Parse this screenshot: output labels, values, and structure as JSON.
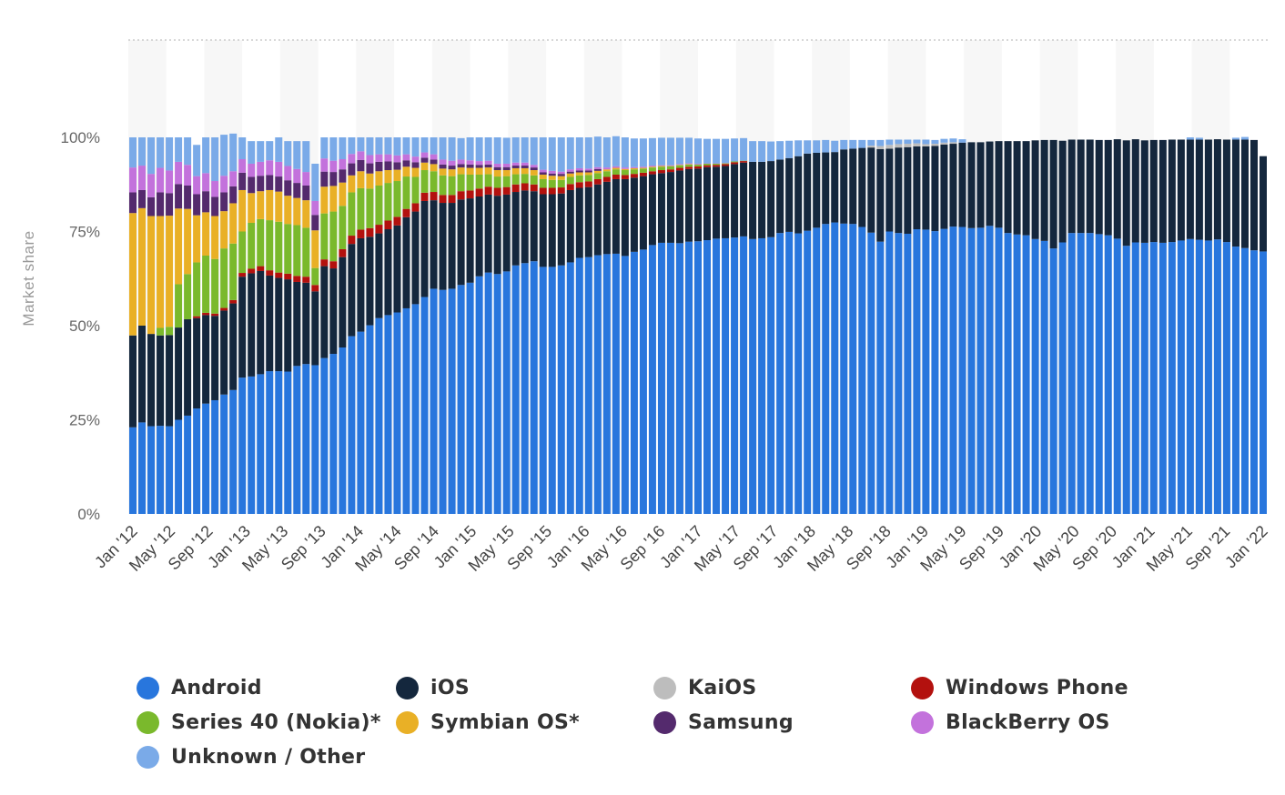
{
  "chart_data": {
    "type": "bar",
    "stacked": true,
    "x_tick_labels": [
      "Jan '12",
      "May '12",
      "Sep '12",
      "Jan '13",
      "May '13",
      "Sep '13",
      "Jan '14",
      "May '14",
      "Sep '14",
      "Jan '15",
      "May '15",
      "Sep '15",
      "Jan '16",
      "May '16",
      "Sep '16",
      "Jan '17",
      "May '17",
      "Sep '17",
      "Jan '18",
      "May '18",
      "Sep '18",
      "Jan '19",
      "May '19",
      "Sep '19",
      "Jan '20",
      "May '20",
      "Sep '20",
      "Jan '21",
      "May '21",
      "Sep '21",
      "Jan '22"
    ],
    "x_start": "Jan '12",
    "x_end": "Jan '22",
    "ylabel": "Market share",
    "y_ticks": [
      "0%",
      "25%",
      "50%",
      "75%",
      "100%"
    ],
    "ylim": [
      0,
      100
    ],
    "grid": "horizontal dotted",
    "legend_position": "bottom",
    "series": [
      {
        "name": "Android",
        "color": "#2876dd",
        "values": [
          23.0,
          24.3,
          23.3,
          23.4,
          23.3,
          25.0,
          26.1,
          28.0,
          29.3,
          30.2,
          31.7,
          32.9,
          36.2,
          36.5,
          37.1,
          37.9,
          37.9,
          37.8,
          39.3,
          39.8,
          39.5,
          41.4,
          42.5,
          44.2,
          47.2,
          48.4,
          50.1,
          52.0,
          52.8,
          53.5,
          54.6,
          55.7,
          57.6,
          59.8,
          59.5,
          59.8,
          60.8,
          61.4,
          63.1,
          64.1,
          63.7,
          64.4,
          66.0,
          66.6,
          67.1,
          65.6,
          65.6,
          66.0,
          66.8,
          68.0,
          68.2,
          68.7,
          69.0,
          69.1,
          68.5,
          69.6,
          70.2,
          71.4,
          72.0,
          72.0,
          71.9,
          72.3,
          72.4,
          72.7,
          73.1,
          73.2,
          73.4,
          73.7,
          73.0,
          73.2,
          73.5,
          74.6,
          74.9,
          74.5,
          75.2,
          76.0,
          77.0,
          77.4,
          77.1,
          77.0,
          76.2,
          74.7,
          72.3,
          75.0,
          74.6,
          74.4,
          75.6,
          75.5,
          75.1,
          75.7,
          76.3,
          76.2,
          75.9,
          76.0,
          76.5,
          76.0,
          74.6,
          74.2,
          74.0,
          73.0,
          72.5,
          70.5,
          72.1,
          74.6,
          74.6,
          74.6,
          74.3,
          74.0,
          73.1,
          71.2,
          72.1,
          72.0,
          72.2,
          72.0,
          72.2,
          72.6,
          73.0,
          72.8,
          72.6,
          72.9,
          72.2,
          71.0,
          70.6,
          70.0,
          69.7
        ]
      },
      {
        "name": "iOS",
        "color": "#14273d",
        "values": [
          24.4,
          25.7,
          24.5,
          24.0,
          24.2,
          24.5,
          25.6,
          24.0,
          23.5,
          22.4,
          22.3,
          23.0,
          26.8,
          27.4,
          27.4,
          25.4,
          24.8,
          24.5,
          22.3,
          21.6,
          19.6,
          24.4,
          22.7,
          24.0,
          24.5,
          24.8,
          23.5,
          22.5,
          22.8,
          23.1,
          24.2,
          24.6,
          25.5,
          23.5,
          23.1,
          22.8,
          22.7,
          22.4,
          21.2,
          20.7,
          20.8,
          20.4,
          19.5,
          19.3,
          18.6,
          19.3,
          19.3,
          19.1,
          19.2,
          18.6,
          18.6,
          18.8,
          19.2,
          19.8,
          20.4,
          19.7,
          19.5,
          18.8,
          18.5,
          18.8,
          19.3,
          19.3,
          19.3,
          19.4,
          19.1,
          19.2,
          19.5,
          19.6,
          20.5,
          20.3,
          20.2,
          19.5,
          19.6,
          20.5,
          20.5,
          19.9,
          19.0,
          18.7,
          19.7,
          20.0,
          21.0,
          22.6,
          24.6,
          22.0,
          22.7,
          23.0,
          22.0,
          22.1,
          22.6,
          22.4,
          22.0,
          22.4,
          22.8,
          22.7,
          22.4,
          23.0,
          24.4,
          24.8,
          25.0,
          26.2,
          26.8,
          28.8,
          27.0,
          24.8,
          24.8,
          24.8,
          25.0,
          25.3,
          26.4,
          28.0,
          27.4,
          27.2,
          27.1,
          27.3,
          27.2,
          26.8,
          26.4,
          26.6,
          26.8,
          26.6,
          27.2,
          28.4,
          28.8,
          29.3,
          25.3
        ]
      },
      {
        "name": "KaiOS",
        "color": "#bdbdbd",
        "values": [
          0,
          0,
          0,
          0,
          0,
          0,
          0,
          0,
          0,
          0,
          0,
          0,
          0,
          0,
          0,
          0,
          0,
          0,
          0,
          0,
          0,
          0,
          0,
          0,
          0,
          0,
          0,
          0,
          0,
          0,
          0,
          0,
          0,
          0,
          0,
          0,
          0,
          0,
          0,
          0,
          0,
          0,
          0,
          0,
          0,
          0,
          0,
          0,
          0,
          0,
          0,
          0,
          0,
          0,
          0,
          0,
          0,
          0,
          0,
          0,
          0,
          0,
          0,
          0,
          0,
          0,
          0,
          0,
          0,
          0,
          0,
          0,
          0,
          0,
          0,
          0,
          0,
          0,
          0,
          0,
          0,
          0.5,
          0.8,
          1.0,
          0.9,
          0.9,
          0.8,
          0.6,
          0.6,
          0.5,
          0.4,
          0,
          0,
          0,
          0,
          0,
          0,
          0,
          0,
          0,
          0,
          0,
          0,
          0,
          0,
          0,
          0,
          0,
          0,
          0,
          0,
          0,
          0,
          0,
          0,
          0,
          0,
          0,
          0,
          0,
          0,
          0,
          0,
          0,
          0,
          0,
          0.6
        ]
      },
      {
        "name": "Windows Phone",
        "color": "#b3110e",
        "values": [
          0,
          0,
          0,
          0,
          0,
          0,
          0,
          0.5,
          0.6,
          0.6,
          0.7,
          0.9,
          1.0,
          1.2,
          1.3,
          1.4,
          1.4,
          1.5,
          1.6,
          1.6,
          1.7,
          1.8,
          1.9,
          2.1,
          2.2,
          2.3,
          2.3,
          2.3,
          2.3,
          2.3,
          2.2,
          2.2,
          2.2,
          2.2,
          2.1,
          2.1,
          2.2,
          2.1,
          2.1,
          2.1,
          2.1,
          2.0,
          2.0,
          1.9,
          1.8,
          1.7,
          1.7,
          1.6,
          1.6,
          1.5,
          1.5,
          1.4,
          1.3,
          1.2,
          1.1,
          1.0,
          0.9,
          0.8,
          0.8,
          0.7,
          0.7,
          0.6,
          0.6,
          0.5,
          0.5,
          0.5,
          0.5,
          0.4,
          0,
          0,
          0,
          0,
          0,
          0,
          0,
          0,
          0,
          0,
          0,
          0,
          0,
          0,
          0,
          0,
          0,
          0,
          0,
          0,
          0,
          0,
          0,
          0,
          0,
          0,
          0,
          0,
          0,
          0,
          0,
          0,
          0,
          0,
          0,
          0,
          0,
          0,
          0,
          0,
          0,
          0,
          0,
          0,
          0,
          0,
          0,
          0,
          0,
          0,
          0,
          0,
          0,
          0,
          0,
          0,
          0,
          0,
          0
        ]
      },
      {
        "name": "Series 40 (Nokia)*",
        "color": "#7ab92c",
        "values": [
          0,
          0,
          0,
          2.0,
          2.2,
          11.5,
          12.0,
          14.3,
          15.2,
          14.5,
          15.8,
          15.0,
          11.0,
          12.2,
          12.5,
          13.3,
          13.5,
          13.2,
          13.5,
          13.0,
          4.5,
          12.2,
          13.2,
          11.5,
          11.5,
          11.0,
          10.5,
          10.4,
          10.0,
          9.5,
          8.6,
          7.0,
          6.0,
          5.5,
          5.2,
          5.0,
          4.5,
          4.2,
          3.7,
          3.3,
          3.0,
          2.9,
          2.7,
          2.5,
          2.4,
          2.3,
          2.1,
          2.0,
          1.9,
          1.8,
          1.7,
          1.6,
          1.5,
          1.4,
          1.3,
          1.2,
          1.1,
          1.0,
          0.9,
          0.8,
          0.7,
          0.6,
          0.5,
          0.4,
          0.3,
          0.2,
          0.2,
          0.1,
          0,
          0,
          0,
          0,
          0,
          0,
          0,
          0,
          0,
          0,
          0,
          0,
          0,
          0,
          0,
          0,
          0,
          0,
          0,
          0,
          0,
          0,
          0,
          0,
          0,
          0,
          0,
          0,
          0,
          0,
          0,
          0,
          0,
          0,
          0,
          0,
          0,
          0,
          0,
          0,
          0,
          0,
          0,
          0,
          0,
          0,
          0,
          0,
          0,
          0,
          0,
          0,
          0,
          0,
          0,
          0,
          0
        ]
      },
      {
        "name": "Symbian OS*",
        "color": "#e9b026",
        "values": [
          32.5,
          31.2,
          31.3,
          29.7,
          29.5,
          20.1,
          17.3,
          12.5,
          11.5,
          11.4,
          9.9,
          10.7,
          11.0,
          7.9,
          7.4,
          8.0,
          8.0,
          7.5,
          7.2,
          7.3,
          10.0,
          7.1,
          6.8,
          6.2,
          4.5,
          4.5,
          4.0,
          3.8,
          3.4,
          3.0,
          2.6,
          2.4,
          2.0,
          1.9,
          1.8,
          1.8,
          1.8,
          1.8,
          1.8,
          1.8,
          1.7,
          1.6,
          1.6,
          1.5,
          1.4,
          1.2,
          1.1,
          1.0,
          0.9,
          0.8,
          0.7,
          0.6,
          0.5,
          0.4,
          0.3,
          0.3,
          0.2,
          0.2,
          0.2,
          0.1,
          0.1,
          0.1,
          0,
          0,
          0,
          0,
          0,
          0,
          0,
          0,
          0,
          0,
          0,
          0,
          0,
          0,
          0,
          0,
          0,
          0,
          0,
          0,
          0,
          0,
          0,
          0,
          0,
          0,
          0,
          0,
          0,
          0,
          0,
          0,
          0,
          0,
          0,
          0,
          0,
          0,
          0,
          0,
          0,
          0,
          0,
          0,
          0,
          0,
          0,
          0,
          0,
          0,
          0,
          0,
          0,
          0,
          0,
          0,
          0,
          0,
          0,
          0,
          0,
          0,
          0
        ]
      },
      {
        "name": "Samsung",
        "color": "#542a6d",
        "values": [
          5.5,
          4.8,
          5.0,
          6.3,
          6.0,
          6.5,
          6.2,
          5.6,
          5.6,
          5.1,
          5.0,
          4.5,
          4.6,
          4.3,
          4.1,
          4.0,
          4.0,
          4.1,
          4.0,
          3.9,
          4.1,
          4.0,
          3.7,
          3.5,
          3.2,
          3.0,
          2.7,
          2.5,
          2.3,
          2.0,
          1.7,
          1.5,
          1.3,
          1.2,
          1.1,
          1.0,
          0.9,
          0.9,
          0.8,
          0.8,
          0.8,
          0.8,
          0.7,
          0.7,
          0.7,
          0.6,
          0.6,
          0.6,
          0.5,
          0.5,
          0.5,
          0.5,
          0,
          0,
          0,
          0,
          0,
          0,
          0,
          0,
          0,
          0,
          0,
          0,
          0,
          0,
          0,
          0,
          0,
          0,
          0,
          0,
          0,
          0,
          0,
          0,
          0,
          0,
          0,
          0,
          0,
          0,
          0,
          0,
          0,
          0,
          0,
          0,
          0,
          0,
          0,
          0,
          0,
          0,
          0,
          0,
          0,
          0,
          0,
          0,
          0,
          0,
          0,
          0,
          0,
          0,
          0,
          0,
          0,
          0,
          0,
          0,
          0,
          0,
          0,
          0,
          0,
          0,
          0,
          0,
          0,
          0,
          0,
          0,
          0,
          0,
          0
        ]
      },
      {
        "name": "BlackBerry OS",
        "color": "#c372dc",
        "values": [
          6.6,
          6.5,
          6.2,
          6.5,
          6.0,
          5.9,
          5.5,
          4.8,
          4.8,
          4.2,
          4.4,
          4.0,
          3.6,
          3.5,
          3.7,
          3.9,
          3.9,
          3.8,
          3.7,
          3.6,
          3.7,
          3.5,
          3.0,
          2.7,
          2.5,
          2.3,
          2.2,
          2.0,
          1.9,
          1.8,
          1.6,
          1.5,
          1.4,
          1.4,
          1.3,
          1.3,
          1.2,
          1.1,
          1.0,
          1.0,
          0.9,
          0.9,
          0.8,
          0.8,
          0.7,
          0.7,
          0.7,
          0.6,
          0.6,
          0.6,
          0.5,
          0.5,
          0.5,
          0.4,
          0.4,
          0.3,
          0.3,
          0.3,
          0.2,
          0.2,
          0.2,
          0.2,
          0.2,
          0.1,
          0.1,
          0.1,
          0,
          0,
          0,
          0,
          0,
          0,
          0,
          0,
          0,
          0,
          0,
          0,
          0,
          0,
          0,
          0,
          0,
          0,
          0,
          0,
          0,
          0,
          0,
          0,
          0,
          0,
          0,
          0,
          0,
          0,
          0,
          0,
          0,
          0,
          0,
          0,
          0,
          0,
          0,
          0,
          0,
          0,
          0,
          0,
          0,
          0,
          0,
          0,
          0,
          0,
          0,
          0,
          0,
          0,
          0,
          0,
          0,
          0,
          0,
          0,
          0
        ]
      },
      {
        "name": "Unknown / Other",
        "color": "#7aaae8",
        "values": [
          8.0,
          7.5,
          9.7,
          8.1,
          8.8,
          6.5,
          7.3,
          8.3,
          9.5,
          11.6,
          10.9,
          10.0,
          5.8,
          6.0,
          5.5,
          5.1,
          6.5,
          6.6,
          7.4,
          8.2,
          9.9,
          5.6,
          6.2,
          5.8,
          4.4,
          3.7,
          4.7,
          4.5,
          4.5,
          4.8,
          4.5,
          5.1,
          4.0,
          4.5,
          5.9,
          6.2,
          5.7,
          6.1,
          6.3,
          6.2,
          7.0,
          6.9,
          6.7,
          6.7,
          7.3,
          8.6,
          8.9,
          9.1,
          8.5,
          8.2,
          8.3,
          8.1,
          8.0,
          8.0,
          8.0,
          7.6,
          7.5,
          7.3,
          7.3,
          7.3,
          7.0,
          6.8,
          6.7,
          6.5,
          6.5,
          6.4,
          6.1,
          6.0,
          5.5,
          5.5,
          5.2,
          4.9,
          4.6,
          4.2,
          3.5,
          3.3,
          3.3,
          3.0,
          2.5,
          2.3,
          2.1,
          1.5,
          1.6,
          1.4,
          1.2,
          1.1,
          1.0,
          1.2,
          1.0,
          1.0,
          1.0,
          0.9,
          0,
          0,
          0,
          0,
          0,
          0,
          0,
          0,
          0,
          0,
          0,
          0,
          0,
          0,
          0,
          0,
          0,
          0,
          0,
          0,
          0,
          0,
          0,
          0,
          0.6,
          0.5,
          0,
          0,
          0,
          0.5,
          0.7
        ]
      }
    ]
  }
}
